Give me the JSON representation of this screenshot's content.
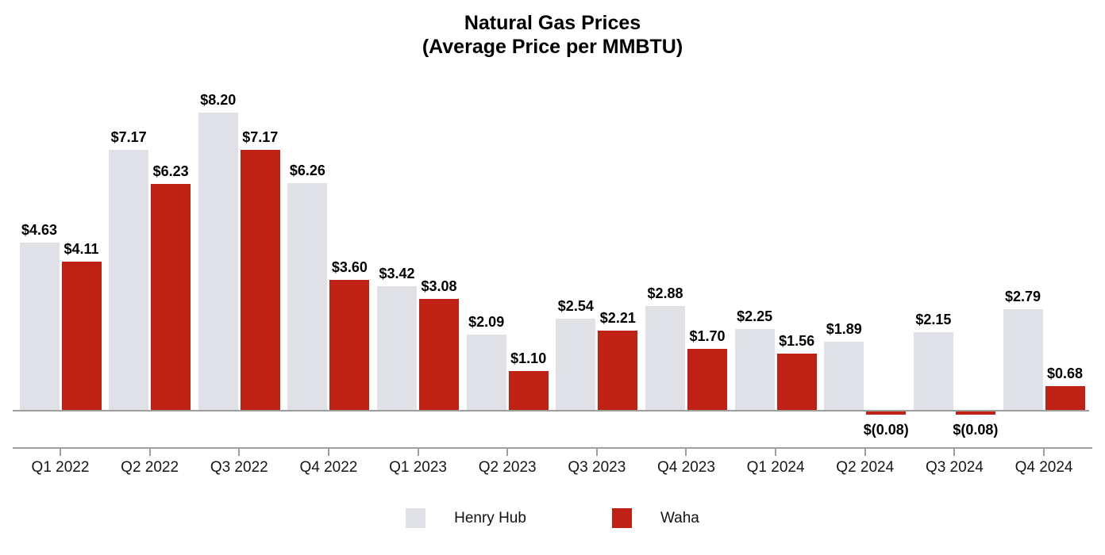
{
  "title": {
    "line1": "Natural Gas Prices",
    "line2": "(Average Price per MMBTU)"
  },
  "chart_data": {
    "type": "bar",
    "title": "Natural Gas Prices (Average Price per MMBTU)",
    "categories": [
      "Q1 2022",
      "Q2 2022",
      "Q3 2022",
      "Q4 2022",
      "Q1 2023",
      "Q2 2023",
      "Q3 2023",
      "Q4 2023",
      "Q1 2024",
      "Q2 2024",
      "Q3 2024",
      "Q4 2024"
    ],
    "series": [
      {
        "name": "Henry Hub",
        "color": "#e0e1e6",
        "values": [
          4.63,
          7.17,
          8.2,
          6.26,
          3.42,
          2.09,
          2.54,
          2.88,
          2.25,
          1.89,
          2.15,
          2.79
        ],
        "labels": [
          "$4.63",
          "$7.17",
          "$8.20",
          "$6.26",
          "$3.42",
          "$2.09",
          "$2.54",
          "$2.88",
          "$2.25",
          "$1.89",
          "$2.15",
          "$2.79"
        ]
      },
      {
        "name": "Waha",
        "color": "#c02115",
        "values": [
          4.11,
          6.23,
          7.17,
          3.6,
          3.08,
          1.1,
          2.21,
          1.7,
          1.56,
          -0.08,
          -0.08,
          0.68
        ],
        "labels": [
          "$4.11",
          "$6.23",
          "$7.17",
          "$3.60",
          "$3.08",
          "$1.10",
          "$2.21",
          "$1.70",
          "$1.56",
          "$(0.08)",
          "$(0.08)",
          "$0.68"
        ]
      }
    ],
    "xlabel": "",
    "ylabel": "",
    "ylim": [
      -0.2,
      8.6
    ],
    "grid": false,
    "legend_position": "bottom",
    "legend": [
      "Henry Hub",
      "Waha"
    ],
    "axis_color": "#9e9e9e",
    "value_labels_shown": true
  }
}
